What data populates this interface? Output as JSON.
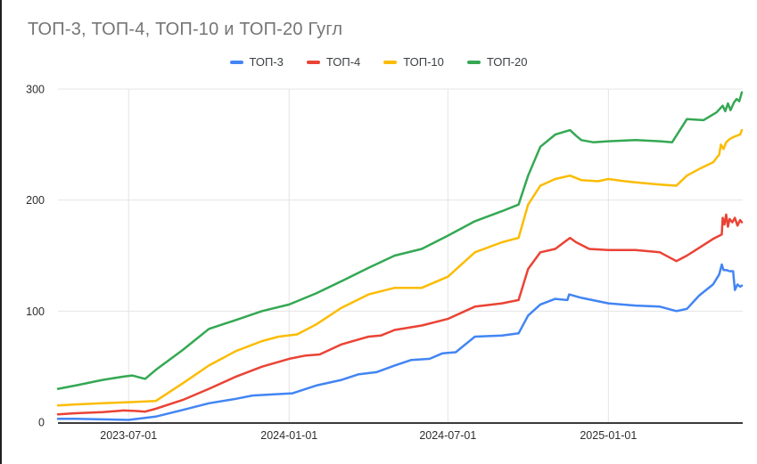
{
  "title": "ТОП-3, ТОП-4, ТОП-10 и ТОП-20 Гугл",
  "chart_data": {
    "type": "line",
    "title": "ТОП-3, ТОП-4, ТОП-10 и ТОП-20 Гугл",
    "xlabel": "",
    "ylabel": "",
    "legend_position": "top",
    "grid": true,
    "ylim": [
      0,
      300
    ],
    "yticks": [
      0,
      100,
      200,
      300
    ],
    "xticks": [
      "2023-07-01",
      "2024-01-01",
      "2024-07-01",
      "2025-01-01"
    ],
    "x_range": [
      "2023-04-11",
      "2025-06-04"
    ],
    "axis_color": "#3b3b3b",
    "gridline_color": "#e4e4e4",
    "tick_label_color": "#2d2d2d",
    "series": [
      {
        "name": "ТОП-3",
        "color": "#4285F4",
        "points": [
          [
            "2023-04-11",
            3
          ],
          [
            "2023-05-01",
            3
          ],
          [
            "2023-06-01",
            2.5
          ],
          [
            "2023-07-01",
            2
          ],
          [
            "2023-08-01",
            5
          ],
          [
            "2023-09-01",
            11
          ],
          [
            "2023-10-01",
            17
          ],
          [
            "2023-11-01",
            21
          ],
          [
            "2023-11-20",
            24
          ],
          [
            "2023-12-15",
            25
          ],
          [
            "2024-01-05",
            26
          ],
          [
            "2024-02-01",
            33
          ],
          [
            "2024-03-01",
            38
          ],
          [
            "2024-03-20",
            43
          ],
          [
            "2024-04-10",
            45
          ],
          [
            "2024-05-01",
            51
          ],
          [
            "2024-05-20",
            56
          ],
          [
            "2024-06-10",
            57
          ],
          [
            "2024-06-25",
            62
          ],
          [
            "2024-07-10",
            63
          ],
          [
            "2024-08-01",
            77
          ],
          [
            "2024-09-01",
            78
          ],
          [
            "2024-09-20",
            80
          ],
          [
            "2024-10-01",
            96
          ],
          [
            "2024-10-15",
            106
          ],
          [
            "2024-11-01",
            111
          ],
          [
            "2024-11-15",
            110
          ],
          [
            "2024-11-17",
            115
          ],
          [
            "2024-12-01",
            112
          ],
          [
            "2025-01-01",
            107
          ],
          [
            "2025-02-01",
            105
          ],
          [
            "2025-03-01",
            104
          ],
          [
            "2025-03-20",
            100
          ],
          [
            "2025-04-01",
            102
          ],
          [
            "2025-04-15",
            114
          ],
          [
            "2025-05-01",
            124
          ],
          [
            "2025-05-08",
            133
          ],
          [
            "2025-05-11",
            142
          ],
          [
            "2025-05-13",
            137
          ],
          [
            "2025-05-16",
            137
          ],
          [
            "2025-05-20",
            136
          ],
          [
            "2025-05-24",
            136
          ],
          [
            "2025-05-26",
            119
          ],
          [
            "2025-05-29",
            124
          ],
          [
            "2025-06-01",
            122
          ],
          [
            "2025-06-03",
            123
          ]
        ]
      },
      {
        "name": "ТОП-4",
        "color": "#EA4335",
        "points": [
          [
            "2023-04-11",
            7
          ],
          [
            "2023-05-01",
            8
          ],
          [
            "2023-06-01",
            9
          ],
          [
            "2023-06-25",
            10.5
          ],
          [
            "2023-07-10",
            10
          ],
          [
            "2023-07-20",
            9.5
          ],
          [
            "2023-08-01",
            12
          ],
          [
            "2023-09-01",
            20
          ],
          [
            "2023-10-01",
            30
          ],
          [
            "2023-11-01",
            41
          ],
          [
            "2023-12-01",
            50
          ],
          [
            "2024-01-01",
            57
          ],
          [
            "2024-01-20",
            60
          ],
          [
            "2024-02-05",
            61
          ],
          [
            "2024-03-01",
            70
          ],
          [
            "2024-04-01",
            77
          ],
          [
            "2024-04-15",
            78
          ],
          [
            "2024-05-01",
            83
          ],
          [
            "2024-06-01",
            87
          ],
          [
            "2024-07-01",
            93
          ],
          [
            "2024-08-01",
            104
          ],
          [
            "2024-09-01",
            107
          ],
          [
            "2024-09-20",
            110
          ],
          [
            "2024-10-01",
            138
          ],
          [
            "2024-10-15",
            153
          ],
          [
            "2024-11-01",
            156
          ],
          [
            "2024-11-18",
            166
          ],
          [
            "2024-11-25",
            162
          ],
          [
            "2024-12-10",
            156
          ],
          [
            "2025-01-01",
            155
          ],
          [
            "2025-02-01",
            155
          ],
          [
            "2025-03-01",
            153
          ],
          [
            "2025-03-20",
            145
          ],
          [
            "2025-04-01",
            150
          ],
          [
            "2025-04-15",
            157
          ],
          [
            "2025-05-01",
            165
          ],
          [
            "2025-05-11",
            169
          ],
          [
            "2025-05-12",
            184
          ],
          [
            "2025-05-14",
            178
          ],
          [
            "2025-05-16",
            187
          ],
          [
            "2025-05-18",
            176
          ],
          [
            "2025-05-20",
            183
          ],
          [
            "2025-05-23",
            180
          ],
          [
            "2025-05-26",
            184
          ],
          [
            "2025-05-29",
            177
          ],
          [
            "2025-06-01",
            182
          ],
          [
            "2025-06-03",
            180
          ]
        ]
      },
      {
        "name": "ТОП-10",
        "color": "#FBBC04",
        "points": [
          [
            "2023-04-11",
            15
          ],
          [
            "2023-05-01",
            16
          ],
          [
            "2023-06-01",
            17
          ],
          [
            "2023-07-01",
            18
          ],
          [
            "2023-08-01",
            19
          ],
          [
            "2023-09-01",
            35
          ],
          [
            "2023-10-01",
            51
          ],
          [
            "2023-11-01",
            64
          ],
          [
            "2023-12-01",
            73
          ],
          [
            "2023-12-20",
            77
          ],
          [
            "2024-01-10",
            79
          ],
          [
            "2024-02-01",
            88
          ],
          [
            "2024-03-01",
            103
          ],
          [
            "2024-04-01",
            115
          ],
          [
            "2024-05-01",
            121
          ],
          [
            "2024-06-01",
            121
          ],
          [
            "2024-07-01",
            131
          ],
          [
            "2024-08-01",
            153
          ],
          [
            "2024-09-01",
            162
          ],
          [
            "2024-09-20",
            166
          ],
          [
            "2024-10-01",
            196
          ],
          [
            "2024-10-15",
            213
          ],
          [
            "2024-11-01",
            219
          ],
          [
            "2024-11-18",
            222
          ],
          [
            "2024-12-01",
            218
          ],
          [
            "2024-12-20",
            217
          ],
          [
            "2025-01-01",
            219
          ],
          [
            "2025-01-20",
            217
          ],
          [
            "2025-02-01",
            216
          ],
          [
            "2025-03-01",
            214
          ],
          [
            "2025-03-20",
            213
          ],
          [
            "2025-04-01",
            222
          ],
          [
            "2025-04-15",
            228
          ],
          [
            "2025-05-01",
            234
          ],
          [
            "2025-05-08",
            241
          ],
          [
            "2025-05-10",
            250
          ],
          [
            "2025-05-13",
            246
          ],
          [
            "2025-05-16",
            252
          ],
          [
            "2025-05-20",
            255
          ],
          [
            "2025-05-25",
            257
          ],
          [
            "2025-06-01",
            259
          ],
          [
            "2025-06-03",
            263
          ]
        ]
      },
      {
        "name": "ТОП-20",
        "color": "#34A853",
        "points": [
          [
            "2023-04-11",
            30
          ],
          [
            "2023-05-01",
            33
          ],
          [
            "2023-06-01",
            38
          ],
          [
            "2023-06-25",
            41
          ],
          [
            "2023-07-05",
            42
          ],
          [
            "2023-07-20",
            39
          ],
          [
            "2023-08-01",
            47
          ],
          [
            "2023-09-01",
            65
          ],
          [
            "2023-10-01",
            84
          ],
          [
            "2023-11-01",
            92
          ],
          [
            "2023-12-01",
            100
          ],
          [
            "2024-01-01",
            106
          ],
          [
            "2024-02-01",
            116
          ],
          [
            "2024-03-01",
            127
          ],
          [
            "2024-04-01",
            139
          ],
          [
            "2024-05-01",
            150
          ],
          [
            "2024-06-01",
            156
          ],
          [
            "2024-07-01",
            168
          ],
          [
            "2024-08-01",
            181
          ],
          [
            "2024-09-01",
            190
          ],
          [
            "2024-09-20",
            196
          ],
          [
            "2024-10-01",
            222
          ],
          [
            "2024-10-15",
            248
          ],
          [
            "2024-11-01",
            259
          ],
          [
            "2024-11-18",
            263
          ],
          [
            "2024-11-25",
            258
          ],
          [
            "2024-12-01",
            254
          ],
          [
            "2024-12-15",
            252
          ],
          [
            "2025-01-01",
            253
          ],
          [
            "2025-02-01",
            254
          ],
          [
            "2025-03-01",
            253
          ],
          [
            "2025-03-15",
            252
          ],
          [
            "2025-04-01",
            273
          ],
          [
            "2025-04-20",
            272
          ],
          [
            "2025-05-05",
            279
          ],
          [
            "2025-05-12",
            285
          ],
          [
            "2025-05-15",
            280
          ],
          [
            "2025-05-18",
            287
          ],
          [
            "2025-05-21",
            281
          ],
          [
            "2025-05-25",
            288
          ],
          [
            "2025-05-28",
            291
          ],
          [
            "2025-05-31",
            289
          ],
          [
            "2025-06-03",
            297
          ]
        ]
      }
    ]
  }
}
